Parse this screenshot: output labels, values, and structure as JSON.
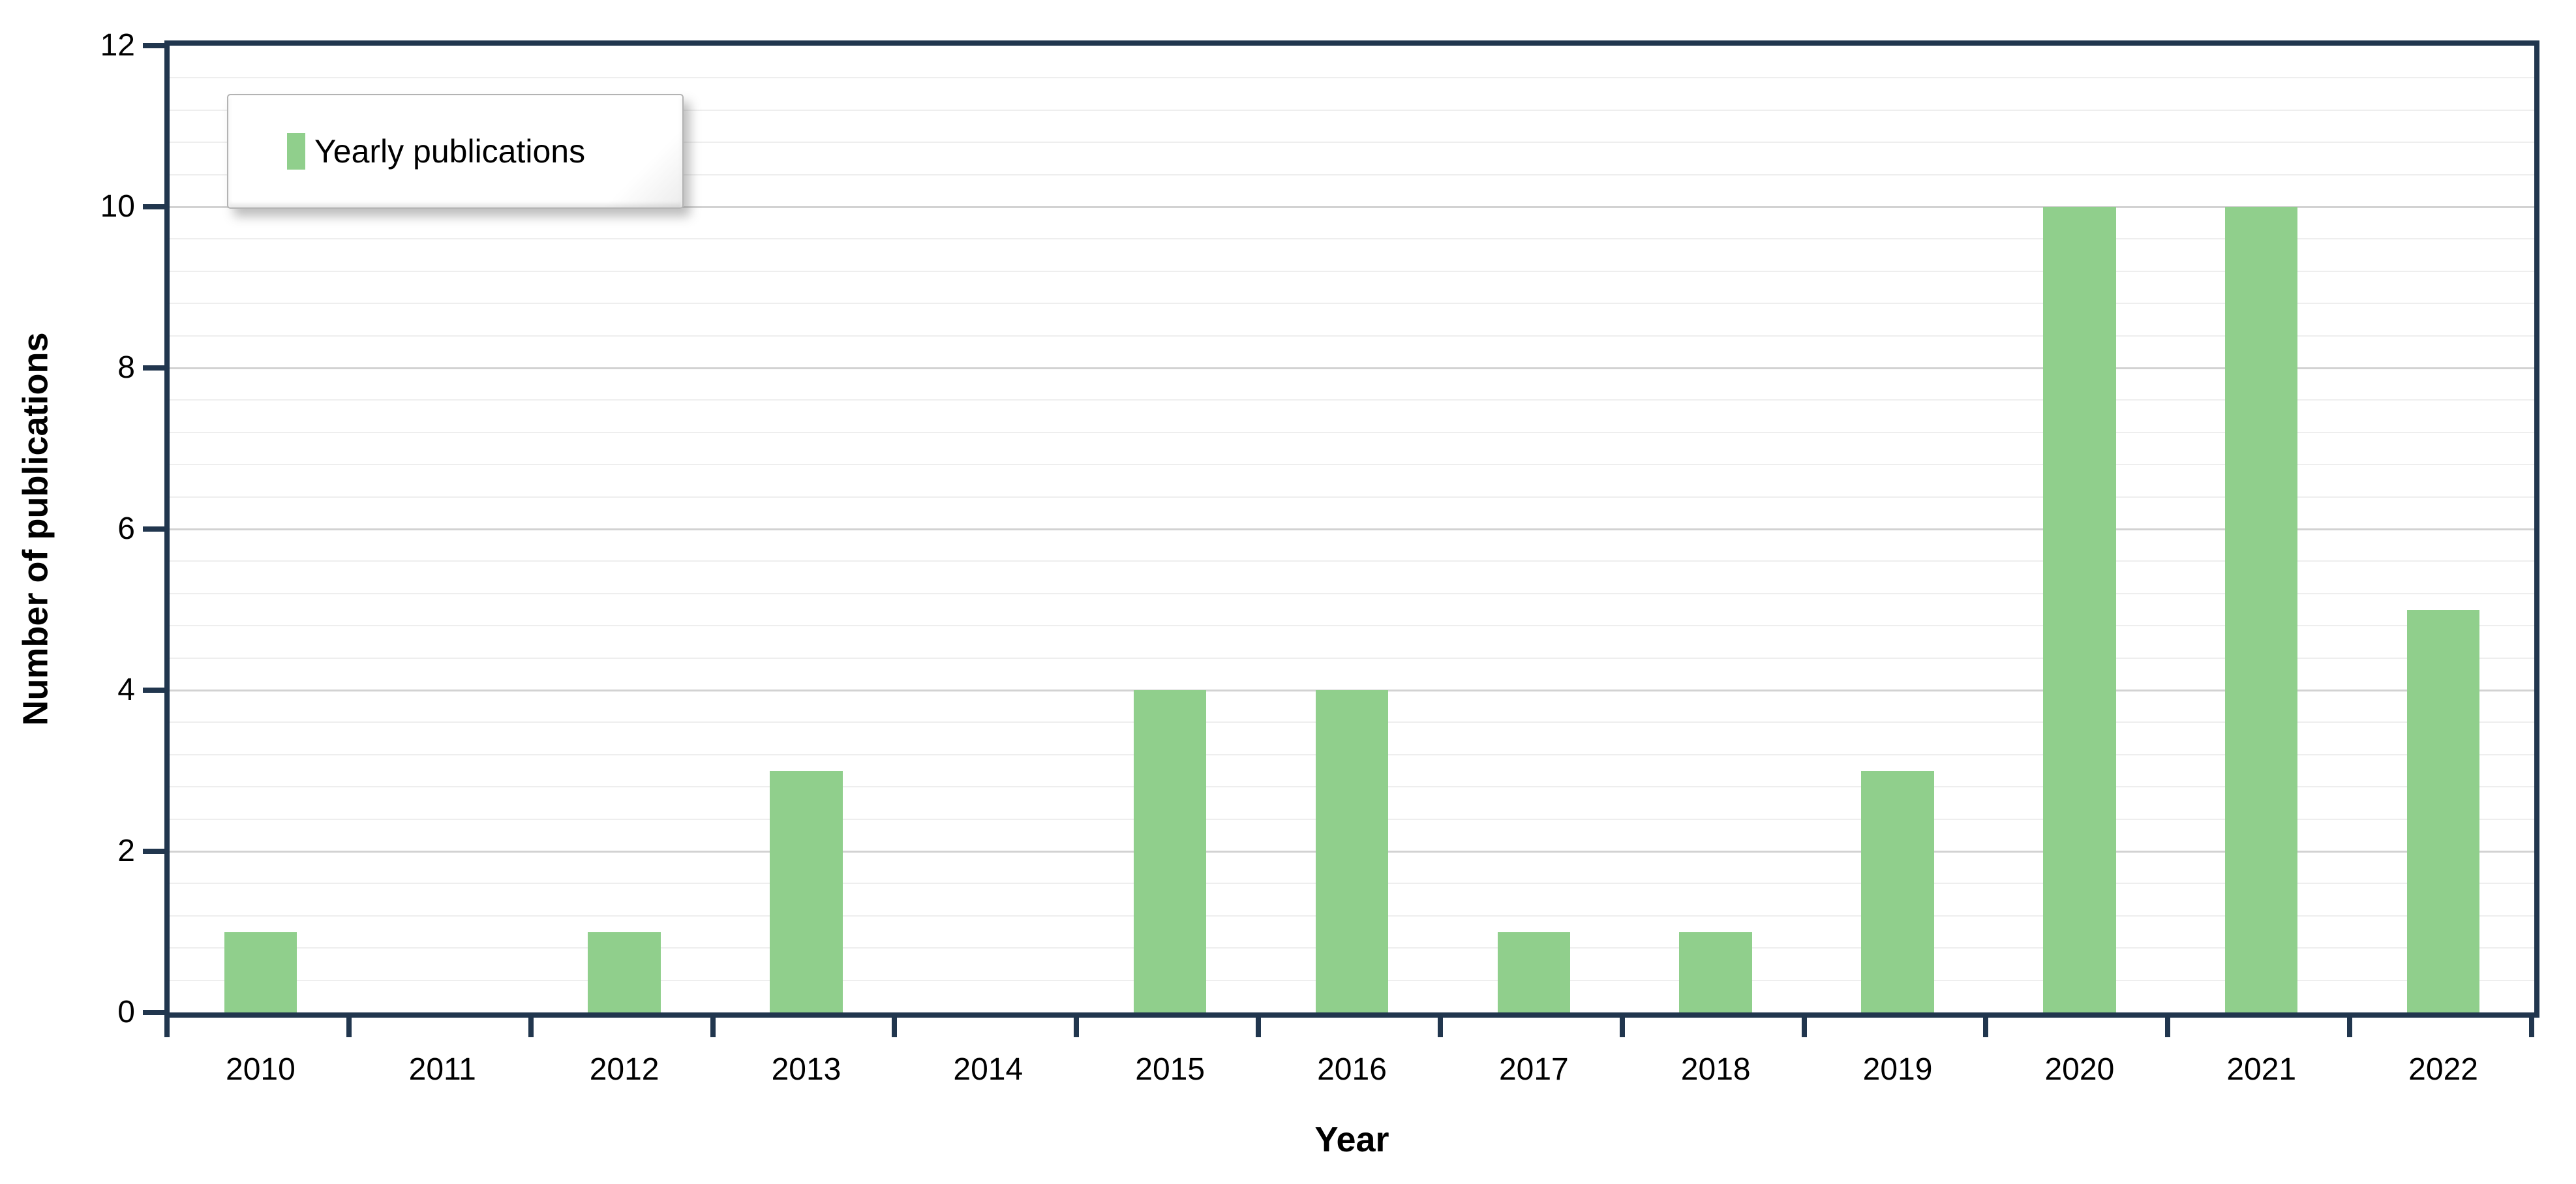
{
  "chart_data": {
    "type": "bar",
    "title": "",
    "xlabel": "Year",
    "ylabel": "Number of publications",
    "categories": [
      "2010",
      "2011",
      "2012",
      "2013",
      "2014",
      "2015",
      "2016",
      "2017",
      "2018",
      "2019",
      "2020",
      "2021",
      "2022"
    ],
    "series": [
      {
        "name": "Yearly publications",
        "values": [
          1,
          0,
          1,
          3,
          0,
          4,
          4,
          1,
          1,
          3,
          10,
          10,
          5
        ],
        "color": "#90CF8C"
      }
    ],
    "ylim": [
      0,
      12
    ],
    "y_major_ticks": [
      0,
      2,
      4,
      6,
      8,
      10,
      12
    ],
    "y_minor_unit": 0.4,
    "grid": "horizontal major and minor gridlines",
    "legend": {
      "label": "Yearly publications",
      "position": "top-left inside plot",
      "style": "white beveled box with drop shadow"
    }
  },
  "colors": {
    "bar": "#90CF8C",
    "axis": "#21364E",
    "grid_major": "#D2D2D2",
    "grid_minor": "#EEEEEE",
    "text": "#000000",
    "legend_border": "#B3B3B3",
    "background": "#FFFFFF"
  }
}
